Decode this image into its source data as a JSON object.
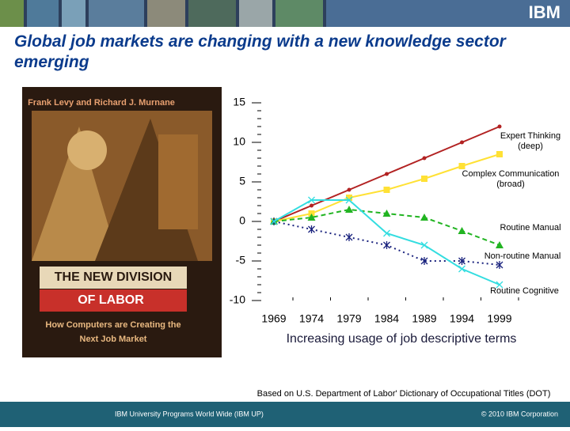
{
  "slide": {
    "title": "Global job markets are changing with a new knowledge sector emerging",
    "logo": "IBM",
    "source": "Based on U.S. Department of Labor' Dictionary of Occupational Titles (DOT)",
    "footer_left": "IBM University Programs World Wide  (IBM UP)",
    "footer_right": "© 2010 IBM Corporation"
  },
  "book": {
    "authors": "Frank Levy and Richard J. Murnane",
    "title_line1": "THE NEW DIVISION",
    "title_line2": "OF LABOR",
    "subtitle": "How Computers are Creating the Next Job Market"
  },
  "chart_data": {
    "type": "line",
    "x_label": "Increasing usage of job descriptive terms",
    "categories": [
      "1969",
      "1974",
      "1979",
      "1984",
      "1989",
      "1994",
      "1999"
    ],
    "ylim": [
      -10,
      15
    ],
    "yticks": [
      -10,
      -5,
      0,
      5,
      10,
      15
    ],
    "series": [
      {
        "name": "Expert Thinking (deep)",
        "color": "#b22222",
        "marker": "circle",
        "line_style": "solid",
        "values": [
          0,
          2,
          4,
          6,
          8,
          10,
          12
        ]
      },
      {
        "name": "Complex Communication (broad)",
        "color": "#ffe135",
        "marker": "square",
        "line_style": "solid",
        "values": [
          0,
          1,
          3,
          4,
          5.4,
          7,
          8.5
        ]
      },
      {
        "name": "Routine Manual",
        "color": "#22b422",
        "marker": "triangle",
        "line_style": "dashed",
        "values": [
          0,
          0.5,
          1.5,
          1,
          0.5,
          -1.2,
          -3
        ]
      },
      {
        "name": "Non-routine Manual",
        "color": "#1a237e",
        "marker": "asterisk",
        "line_style": "dotted",
        "values": [
          0,
          -1,
          -2,
          -3,
          -5,
          -5,
          -5.5
        ]
      },
      {
        "name": "Routine Cognitive",
        "color": "#33dde0",
        "marker": "x",
        "line_style": "solid",
        "values": [
          0,
          2.7,
          2.7,
          -1.5,
          -3,
          -6,
          -8
        ]
      }
    ]
  }
}
